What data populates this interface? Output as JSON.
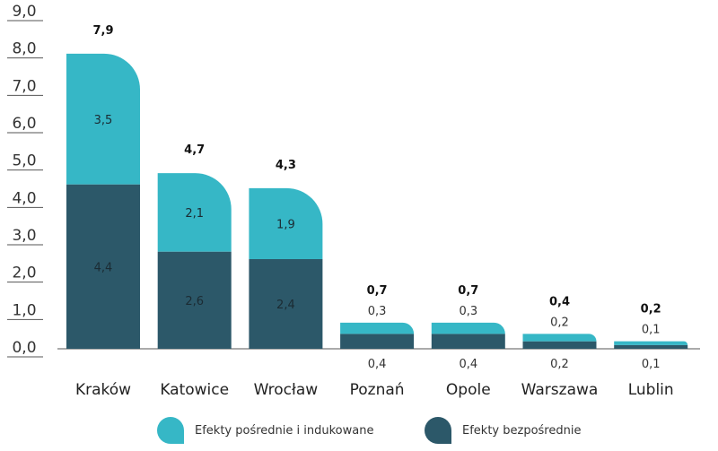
{
  "chart_data": {
    "type": "bar",
    "stacked": true,
    "categories": [
      "Kraków",
      "Katowice",
      "Wrocław",
      "Poznań",
      "Opole",
      "Warszawa",
      "Lublin"
    ],
    "series": [
      {
        "name": "Efekty bezpośrednie",
        "color": "#2c5869",
        "values": [
          4.4,
          2.6,
          2.4,
          0.4,
          0.4,
          0.2,
          0.1
        ],
        "labels": [
          "4,4",
          "2,6",
          "2,4",
          "0,4",
          "0,4",
          "0,2",
          "0,1"
        ]
      },
      {
        "name": "Efekty pośrednie i indukowane",
        "color": "#36b7c6",
        "values": [
          3.5,
          2.1,
          1.9,
          0.3,
          0.3,
          0.2,
          0.1
        ],
        "labels": [
          "3,5",
          "2,1",
          "1,9",
          "0,3",
          "0,3",
          "0,2",
          "0,1"
        ]
      }
    ],
    "totals": [
      7.9,
      4.7,
      4.3,
      0.7,
      0.7,
      0.4,
      0.2
    ],
    "total_labels": [
      "7,9",
      "4,7",
      "4,3",
      "0,7",
      "0,7",
      "0,4",
      "0,2"
    ],
    "ylim": [
      0,
      9
    ],
    "yticks": [
      0,
      1,
      2,
      3,
      4,
      5,
      6,
      7,
      8,
      9
    ],
    "ytick_labels": [
      "0,0",
      "1,0",
      "2,0",
      "3,0",
      "4,0",
      "5,0",
      "6,0",
      "7,0",
      "8,0",
      "9,0"
    ],
    "grid": false,
    "legend_position": "bottom",
    "legend": [
      {
        "name": "Efekty pośrednie i indukowane",
        "color": "#36b7c6"
      },
      {
        "name": "Efekty bezpośrednie",
        "color": "#2c5869"
      }
    ]
  }
}
